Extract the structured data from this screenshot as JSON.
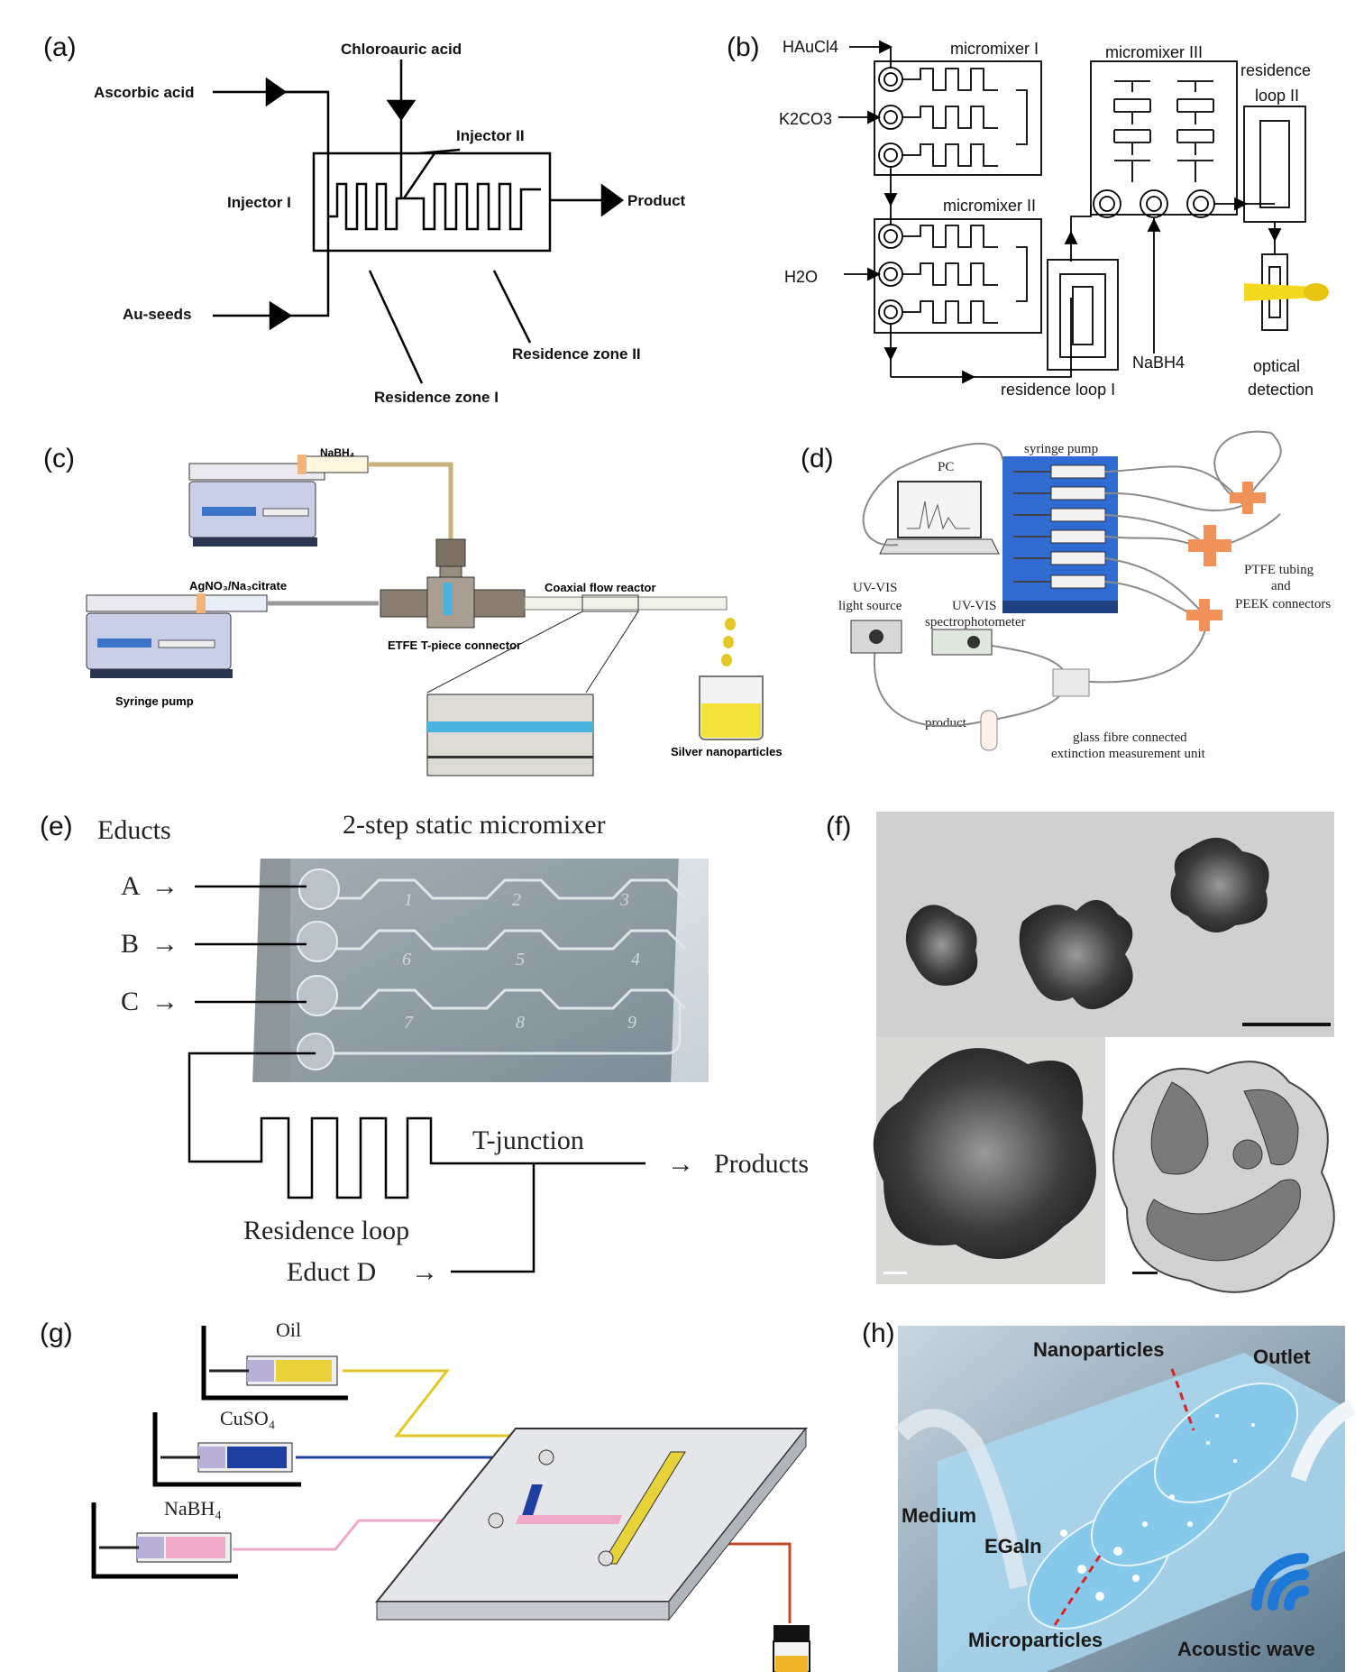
{
  "panels": {
    "a": {
      "label": "(a)",
      "chloroauric": "Chloroauric acid",
      "ascorbic": "Ascorbic acid",
      "injector2": "Injector II",
      "injector1": "Injector I",
      "product": "Product",
      "auseeds": "Au-seeds",
      "zone2": "Residence zone II",
      "zone1": "Residence zone I"
    },
    "b": {
      "label": "(b)",
      "haucl4": "HAuCl4",
      "k2co3": "K2CO3",
      "h2o": "H2O",
      "mm1": "micromixer I",
      "mm2": "micromixer II",
      "mm3": "micromixer III",
      "loop2a": "residence",
      "loop2b": "loop II",
      "loop1": "residence loop I",
      "nabh4": "NaBH4",
      "opt1": "optical",
      "opt2": "detection"
    },
    "c": {
      "label": "(c)",
      "nabh4": "NaBH₄",
      "agno3": "AgNO₃/Na₃citrate",
      "pump": "Syringe pump",
      "tpiece": "ETFE T-piece connector",
      "coaxial": "Coaxial flow reactor",
      "silver": "Silver nanoparticles"
    },
    "d": {
      "label": "(d)",
      "pc": "PC",
      "syringe": "syringe pump",
      "uvvis1a": "UV-VIS",
      "uvvis1b": "light source",
      "uvvis2a": "UV-VIS",
      "uvvis2b": "spectrophotometer",
      "ptfe1": "PTFE tubing",
      "ptfe2": "and",
      "ptfe3": "PEEK connectors",
      "product": "product",
      "glass1": "glass fibre connected",
      "glass2": "extinction measurement unit"
    },
    "e": {
      "label": "(e)",
      "educts": "Educts",
      "title": "2-step static micromixer",
      "a": "A",
      "b": "B",
      "c": "C",
      "tjunction": "T-junction",
      "products": "Products",
      "loop": "Residence loop",
      "eductd": "Educt D",
      "arrow": "→",
      "chip_labels": [
        "1",
        "2",
        "3",
        "4",
        "5",
        "6",
        "7",
        "8",
        "9"
      ]
    },
    "f": {
      "label": "(f)"
    },
    "g": {
      "label": "(g)",
      "oil": "Oil",
      "cuso4": "CuSO₄",
      "nabh4": "NaBH₄"
    },
    "h": {
      "label": "(h)",
      "nano": "Nanoparticles",
      "outlet": "Outlet",
      "medium": "Medium",
      "egain": "EGaIn",
      "micro": "Microparticles",
      "acoustic": "Acoustic wave"
    }
  },
  "colors": {
    "nabh4_syringe": "#f0a8c8",
    "cuso4_syringe": "#1f3fa0",
    "oil_syringe": "#e8d23a",
    "silver_np": "#f2e23a",
    "coaxial_blue": "#4ab3e0",
    "pump_blue": "#2a6ad0",
    "chip_blue": "#8fd0ee",
    "tpiece_orange": "#f0925a"
  }
}
